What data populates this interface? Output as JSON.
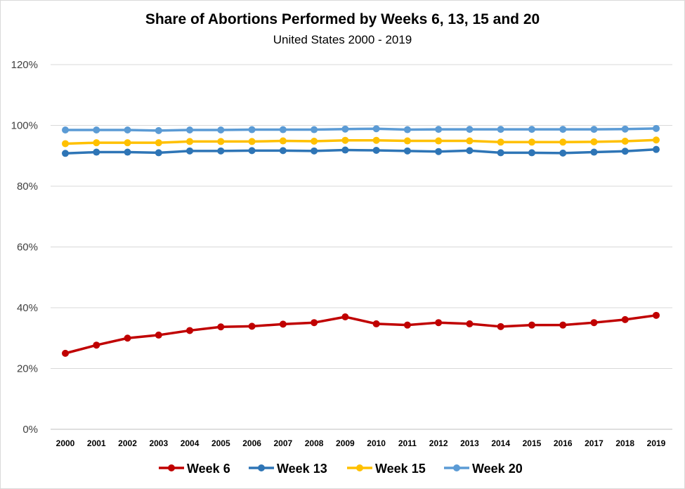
{
  "chart_data": {
    "type": "line",
    "title": "Share of Abortions Performed by Weeks 6, 13, 15 and 20",
    "subtitle": "United States 2000 - 2019",
    "xlabel": "",
    "ylabel": "",
    "ylim": [
      0,
      1.2
    ],
    "y_ticks": [
      "0%",
      "20%",
      "40%",
      "60%",
      "80%",
      "100%",
      "120%"
    ],
    "grid": "horizontal",
    "legend_position": "bottom",
    "categories": [
      "2000",
      "2001",
      "2002",
      "2003",
      "2004",
      "2005",
      "2006",
      "2007",
      "2008",
      "2009",
      "2010",
      "2011",
      "2012",
      "2013",
      "2014",
      "2015",
      "2016",
      "2017",
      "2018",
      "2019"
    ],
    "series": [
      {
        "name": "Week 6",
        "color": "#c00000",
        "values": [
          0.25,
          0.277,
          0.3,
          0.31,
          0.325,
          0.337,
          0.339,
          0.346,
          0.351,
          0.37,
          0.347,
          0.343,
          0.351,
          0.347,
          0.338,
          0.343,
          0.343,
          0.351,
          0.361,
          0.375
        ]
      },
      {
        "name": "Week 13",
        "color": "#2e75b6",
        "values": [
          0.908,
          0.912,
          0.912,
          0.91,
          0.916,
          0.916,
          0.917,
          0.917,
          0.916,
          0.919,
          0.918,
          0.916,
          0.914,
          0.917,
          0.91,
          0.91,
          0.909,
          0.912,
          0.915,
          0.921
        ]
      },
      {
        "name": "Week 15",
        "color": "#ffc000",
        "values": [
          0.94,
          0.943,
          0.943,
          0.943,
          0.947,
          0.947,
          0.947,
          0.949,
          0.948,
          0.951,
          0.951,
          0.949,
          0.949,
          0.949,
          0.945,
          0.945,
          0.945,
          0.946,
          0.948,
          0.952
        ]
      },
      {
        "name": "Week 20",
        "color": "#5b9bd5",
        "values": [
          0.985,
          0.985,
          0.985,
          0.983,
          0.985,
          0.985,
          0.986,
          0.986,
          0.986,
          0.988,
          0.989,
          0.986,
          0.987,
          0.987,
          0.987,
          0.987,
          0.987,
          0.987,
          0.988,
          0.99
        ]
      }
    ]
  }
}
